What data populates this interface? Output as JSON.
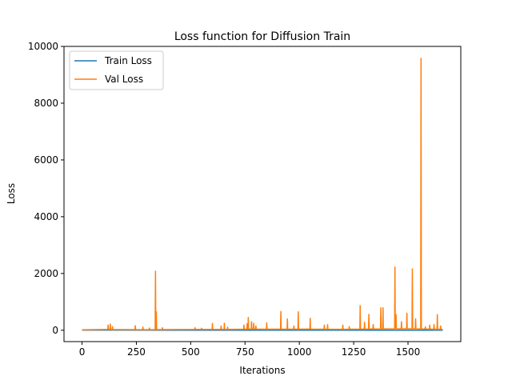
{
  "chart_data": {
    "type": "line",
    "title": "Loss function for Diffusion Train",
    "xlabel": "Iterations",
    "ylabel": "Loss",
    "xlim": [
      -83,
      1743
    ],
    "ylim": [
      -400,
      10000
    ],
    "xticks": [
      0,
      250,
      500,
      750,
      1000,
      1250,
      1500
    ],
    "yticks": [
      0,
      2000,
      4000,
      6000,
      8000,
      10000
    ],
    "grid": false,
    "legend_position": "upper-left",
    "series": [
      {
        "name": "Train Loss",
        "color": "#1f77b4",
        "points": [
          [
            0,
            5
          ],
          [
            200,
            4
          ],
          [
            400,
            3
          ],
          [
            600,
            3
          ],
          [
            800,
            2
          ],
          [
            1000,
            2
          ],
          [
            1200,
            2
          ],
          [
            1400,
            2
          ],
          [
            1600,
            2
          ],
          [
            1660,
            2
          ]
        ]
      },
      {
        "name": "Val Loss",
        "color": "#ff7f0e",
        "baseline_points": [
          [
            0,
            15
          ],
          [
            60,
            20
          ],
          [
            110,
            30
          ],
          [
            180,
            25
          ],
          [
            300,
            20
          ],
          [
            420,
            25
          ],
          [
            520,
            30
          ],
          [
            650,
            30
          ],
          [
            780,
            40
          ],
          [
            900,
            35
          ],
          [
            1050,
            40
          ],
          [
            1200,
            35
          ],
          [
            1350,
            45
          ],
          [
            1450,
            50
          ],
          [
            1550,
            50
          ],
          [
            1660,
            30
          ]
        ],
        "spikes": [
          [
            120,
            180
          ],
          [
            130,
            220
          ],
          [
            140,
            130
          ],
          [
            245,
            160
          ],
          [
            280,
            110
          ],
          [
            310,
            80
          ],
          [
            338,
            2080
          ],
          [
            342,
            650
          ],
          [
            370,
            90
          ],
          [
            520,
            90
          ],
          [
            550,
            70
          ],
          [
            600,
            240
          ],
          [
            640,
            150
          ],
          [
            655,
            250
          ],
          [
            670,
            110
          ],
          [
            745,
            180
          ],
          [
            760,
            230
          ],
          [
            765,
            450
          ],
          [
            780,
            300
          ],
          [
            790,
            250
          ],
          [
            800,
            150
          ],
          [
            850,
            260
          ],
          [
            915,
            660
          ],
          [
            945,
            400
          ],
          [
            975,
            150
          ],
          [
            995,
            650
          ],
          [
            1050,
            420
          ],
          [
            1115,
            180
          ],
          [
            1130,
            200
          ],
          [
            1200,
            180
          ],
          [
            1230,
            130
          ],
          [
            1280,
            870
          ],
          [
            1300,
            280
          ],
          [
            1320,
            560
          ],
          [
            1340,
            200
          ],
          [
            1375,
            790
          ],
          [
            1385,
            790
          ],
          [
            1440,
            2230
          ],
          [
            1445,
            550
          ],
          [
            1470,
            300
          ],
          [
            1495,
            600
          ],
          [
            1520,
            2160
          ],
          [
            1535,
            400
          ],
          [
            1560,
            9580
          ],
          [
            1580,
            120
          ],
          [
            1600,
            180
          ],
          [
            1620,
            200
          ],
          [
            1635,
            550
          ],
          [
            1650,
            150
          ]
        ]
      }
    ]
  }
}
